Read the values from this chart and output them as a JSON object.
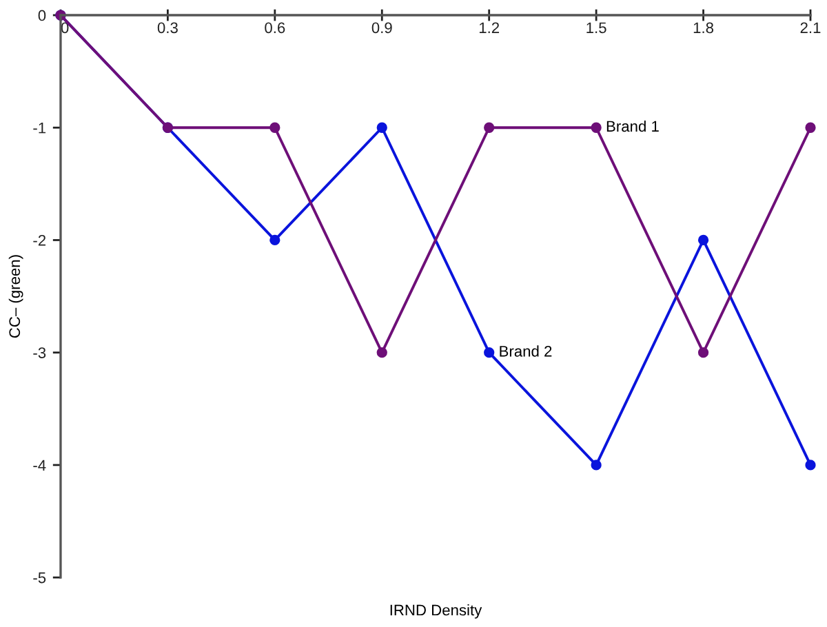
{
  "chart_data": {
    "type": "line",
    "xlabel": "IRND Density",
    "ylabel": "CC– (green)",
    "x": [
      0,
      0.3,
      0.6,
      0.9,
      1.2,
      1.5,
      1.8,
      2.1
    ],
    "series": [
      {
        "color": "#0a14dc",
        "values": [
          0,
          -1,
          -2,
          -1,
          -3,
          -4,
          -2,
          -4
        ]
      },
      {
        "color": "#6e0f78",
        "values": [
          0,
          -1,
          -1,
          -3,
          -1,
          -1,
          -3,
          -1
        ]
      }
    ],
    "annotations": [
      {
        "text": "Brand 1",
        "x": 1.5,
        "y": -1
      },
      {
        "text": "Brand 2",
        "x": 1.2,
        "y": -3
      }
    ],
    "xlim": [
      0,
      2.1
    ],
    "xticks": [
      0,
      0.3,
      0.6,
      0.9,
      1.2,
      1.5,
      1.8,
      2.1
    ],
    "ylim": [
      -5,
      0
    ],
    "yticks": [
      0,
      -1,
      -2,
      -3,
      -4,
      -5
    ],
    "grid": false,
    "marker": "circle",
    "line_style": "solid"
  }
}
